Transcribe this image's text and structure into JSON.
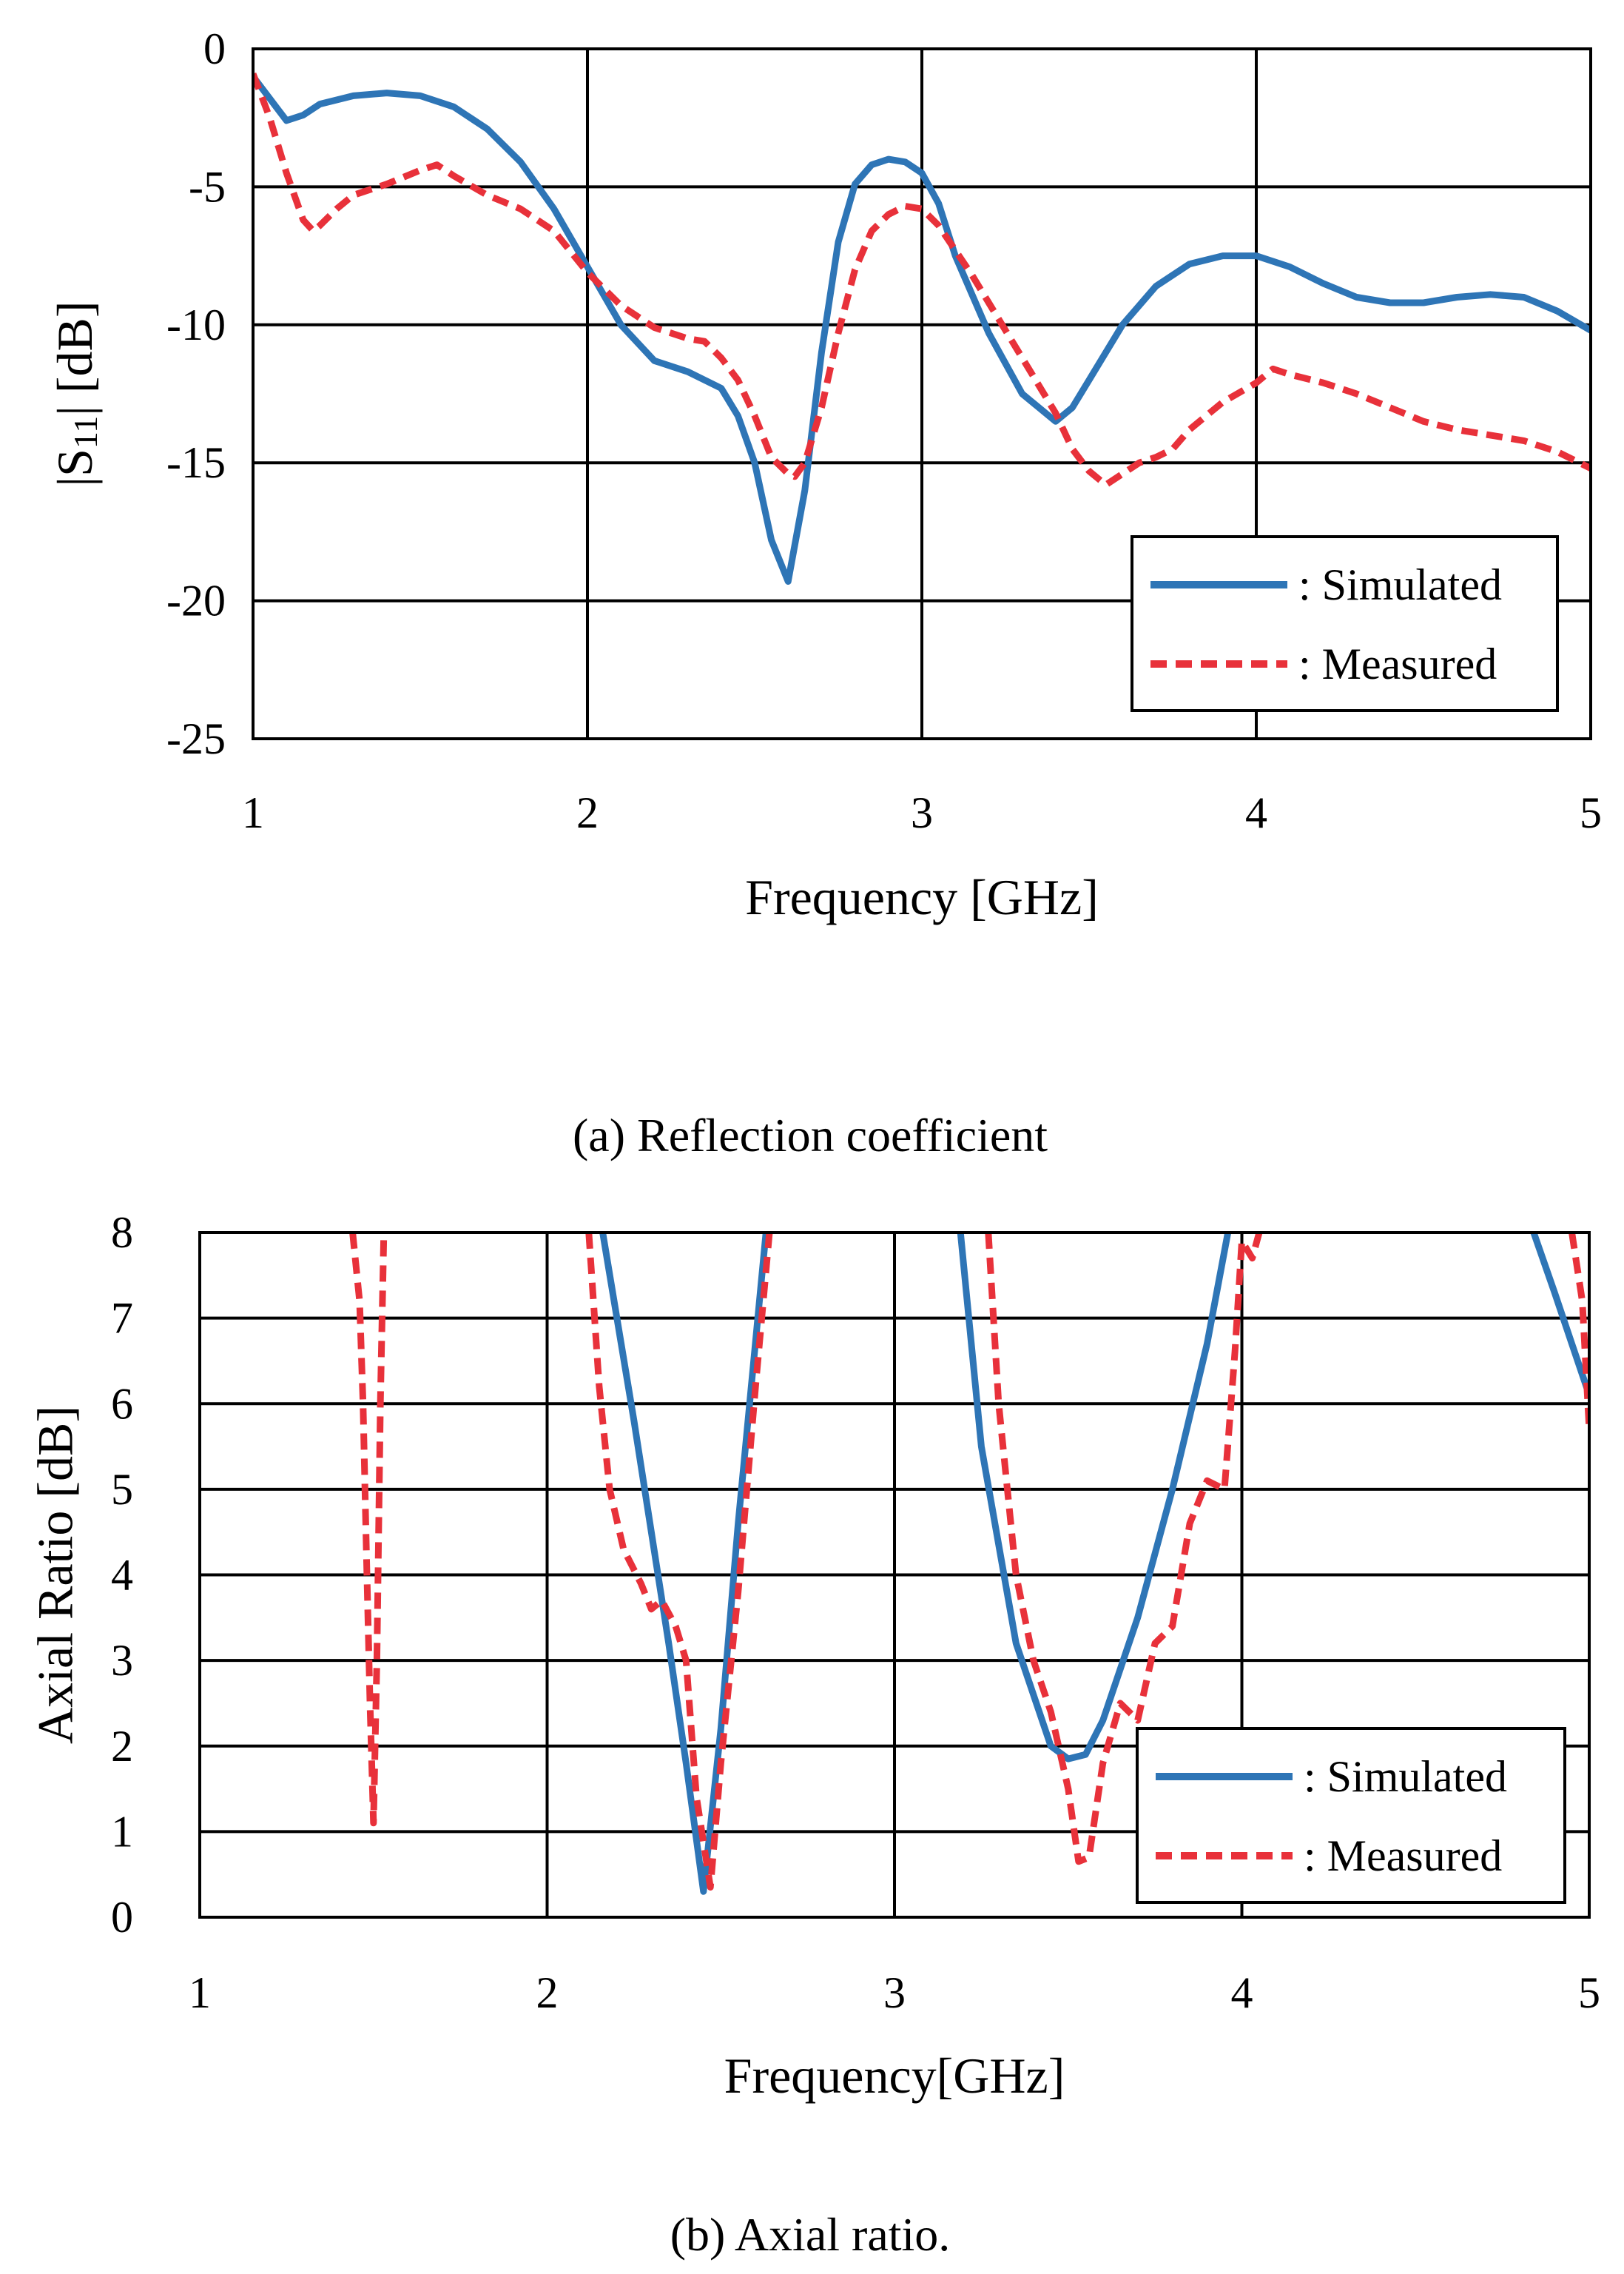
{
  "colors": {
    "simulated": "#2e75b6",
    "measured": "#e8313a",
    "grid": "#000000",
    "background": "#ffffff"
  },
  "chart_data": [
    {
      "type": "line",
      "caption": "(a) Reflection coefficient",
      "xlabel": "Frequency [GHz]",
      "ylabel_prefix": "|S",
      "ylabel_sub": "11",
      "ylabel_suffix": "| [dB]",
      "xlim": [
        1,
        5
      ],
      "ylim": [
        -25,
        0
      ],
      "xticks": [
        "1",
        "2",
        "3",
        "4",
        "5"
      ],
      "yticks": [
        "0",
        "-5",
        "-10",
        "-15",
        "-20",
        "-25"
      ],
      "legend": {
        "position": "bottom-right",
        "entries": [
          ": Simulated",
          ": Measured"
        ]
      },
      "series": [
        {
          "name": "Simulated",
          "style": "solid",
          "x": [
            1.0,
            1.05,
            1.1,
            1.15,
            1.2,
            1.3,
            1.4,
            1.5,
            1.6,
            1.7,
            1.8,
            1.9,
            2.0,
            2.1,
            2.2,
            2.3,
            2.4,
            2.45,
            2.5,
            2.55,
            2.6,
            2.65,
            2.7,
            2.75,
            2.8,
            2.85,
            2.9,
            2.95,
            3.0,
            3.05,
            3.1,
            3.2,
            3.3,
            3.4,
            3.45,
            3.5,
            3.6,
            3.7,
            3.8,
            3.9,
            4.0,
            4.1,
            4.2,
            4.3,
            4.4,
            4.5,
            4.6,
            4.7,
            4.8,
            4.9,
            5.0
          ],
          "values": [
            -1.0,
            -1.8,
            -2.6,
            -2.4,
            -2.0,
            -1.7,
            -1.6,
            -1.7,
            -2.1,
            -2.9,
            -4.1,
            -5.8,
            -7.9,
            -10.0,
            -11.3,
            -11.7,
            -12.3,
            -13.3,
            -15.0,
            -17.8,
            -19.3,
            -16.0,
            -11.0,
            -7.0,
            -4.9,
            -4.2,
            -4.0,
            -4.1,
            -4.5,
            -5.6,
            -7.5,
            -10.3,
            -12.5,
            -13.5,
            -13.0,
            -12.0,
            -10.0,
            -8.6,
            -7.8,
            -7.5,
            -7.5,
            -7.9,
            -8.5,
            -9.0,
            -9.2,
            -9.2,
            -9.0,
            -8.9,
            -9.0,
            -9.5,
            -10.2
          ]
        },
        {
          "name": "Measured",
          "style": "dashed",
          "x": [
            1.0,
            1.05,
            1.1,
            1.15,
            1.18,
            1.2,
            1.25,
            1.3,
            1.4,
            1.5,
            1.55,
            1.6,
            1.7,
            1.8,
            1.9,
            2.0,
            2.1,
            2.2,
            2.3,
            2.35,
            2.4,
            2.45,
            2.5,
            2.55,
            2.6,
            2.62,
            2.65,
            2.7,
            2.75,
            2.8,
            2.85,
            2.9,
            2.95,
            3.0,
            3.05,
            3.1,
            3.15,
            3.2,
            3.3,
            3.4,
            3.45,
            3.5,
            3.55,
            3.6,
            3.65,
            3.7,
            3.75,
            3.8,
            3.9,
            4.0,
            4.05,
            4.1,
            4.2,
            4.3,
            4.4,
            4.5,
            4.6,
            4.7,
            4.8,
            4.9,
            5.0
          ],
          "values": [
            -0.9,
            -2.5,
            -4.5,
            -6.2,
            -6.6,
            -6.4,
            -5.8,
            -5.3,
            -4.9,
            -4.4,
            -4.2,
            -4.6,
            -5.3,
            -5.8,
            -6.6,
            -8.1,
            -9.3,
            -10.1,
            -10.5,
            -10.6,
            -11.2,
            -12.0,
            -13.3,
            -14.8,
            -15.4,
            -15.5,
            -15.0,
            -13.0,
            -10.3,
            -8.0,
            -6.6,
            -6.0,
            -5.7,
            -5.8,
            -6.4,
            -7.3,
            -8.2,
            -9.2,
            -11.2,
            -13.2,
            -14.5,
            -15.3,
            -15.8,
            -15.4,
            -15.0,
            -14.8,
            -14.5,
            -13.8,
            -12.8,
            -12.1,
            -11.6,
            -11.8,
            -12.1,
            -12.5,
            -13.0,
            -13.5,
            -13.8,
            -14.0,
            -14.2,
            -14.6,
            -15.2
          ]
        }
      ]
    },
    {
      "type": "line",
      "caption": "(b) Axial ratio.",
      "xlabel": "Frequency[GHz]",
      "ylabel": "Axial Ratio [dB]",
      "xlim": [
        1,
        5
      ],
      "ylim": [
        0,
        8
      ],
      "xticks": [
        "1",
        "2",
        "3",
        "4",
        "5"
      ],
      "yticks": [
        "0",
        "1",
        "2",
        "3",
        "4",
        "5",
        "6",
        "7",
        "8"
      ],
      "legend": {
        "position": "bottom-right",
        "entries": [
          ": Simulated",
          ": Measured"
        ]
      },
      "series": [
        {
          "name": "Simulated",
          "style": "solid",
          "segments": [
            {
              "x": [
                2.16,
                2.25,
                2.35,
                2.4,
                2.45,
                2.5,
                2.55,
                2.63
              ],
              "values": [
                8.0,
                5.8,
                3.2,
                1.8,
                0.3,
                2.2,
                4.6,
                8.0
              ]
            },
            {
              "x": [
                3.19,
                3.25,
                3.35,
                3.45,
                3.5,
                3.55,
                3.6,
                3.7,
                3.8,
                3.9,
                3.96
              ],
              "values": [
                8.0,
                5.5,
                3.2,
                2.0,
                1.85,
                1.9,
                2.3,
                3.5,
                5.0,
                6.7,
                8.0
              ]
            },
            {
              "x": [
                4.84,
                4.9,
                4.95,
                5.0
              ],
              "values": [
                8.0,
                7.3,
                6.7,
                6.1
              ]
            }
          ]
        },
        {
          "name": "Measured",
          "style": "dashed",
          "segments": [
            {
              "x": [
                1.44,
                1.46,
                1.47,
                1.48,
                1.49,
                1.5,
                1.51,
                1.52,
                1.53
              ],
              "values": [
                8.0,
                7.2,
                6.0,
                4.2,
                2.5,
                1.1,
                3.0,
                6.0,
                8.0
              ]
            },
            {
              "x": [
                2.12,
                2.15,
                2.18,
                2.22,
                2.27,
                2.3,
                2.33,
                2.37,
                2.4,
                2.43,
                2.47,
                2.5,
                2.55,
                2.6,
                2.64
              ],
              "values": [
                8.0,
                6.2,
                5.0,
                4.3,
                3.9,
                3.6,
                3.7,
                3.4,
                3.0,
                1.4,
                0.35,
                1.8,
                3.8,
                6.2,
                8.0
              ]
            },
            {
              "x": [
                3.27,
                3.3,
                3.35,
                3.4,
                3.45,
                3.5,
                3.53,
                3.56,
                3.6,
                3.65,
                3.7,
                3.75,
                3.8,
                3.85,
                3.9,
                3.95,
                3.98,
                4.0,
                4.03,
                4.05
              ],
              "values": [
                8.0,
                6.0,
                4.0,
                3.0,
                2.4,
                1.5,
                0.65,
                0.7,
                1.8,
                2.5,
                2.3,
                3.2,
                3.4,
                4.6,
                5.1,
                5.0,
                6.6,
                7.9,
                7.7,
                8.0
              ]
            },
            {
              "x": [
                4.95,
                4.98,
                5.0
              ],
              "values": [
                8.0,
                7.2,
                5.7
              ]
            }
          ]
        }
      ]
    }
  ]
}
